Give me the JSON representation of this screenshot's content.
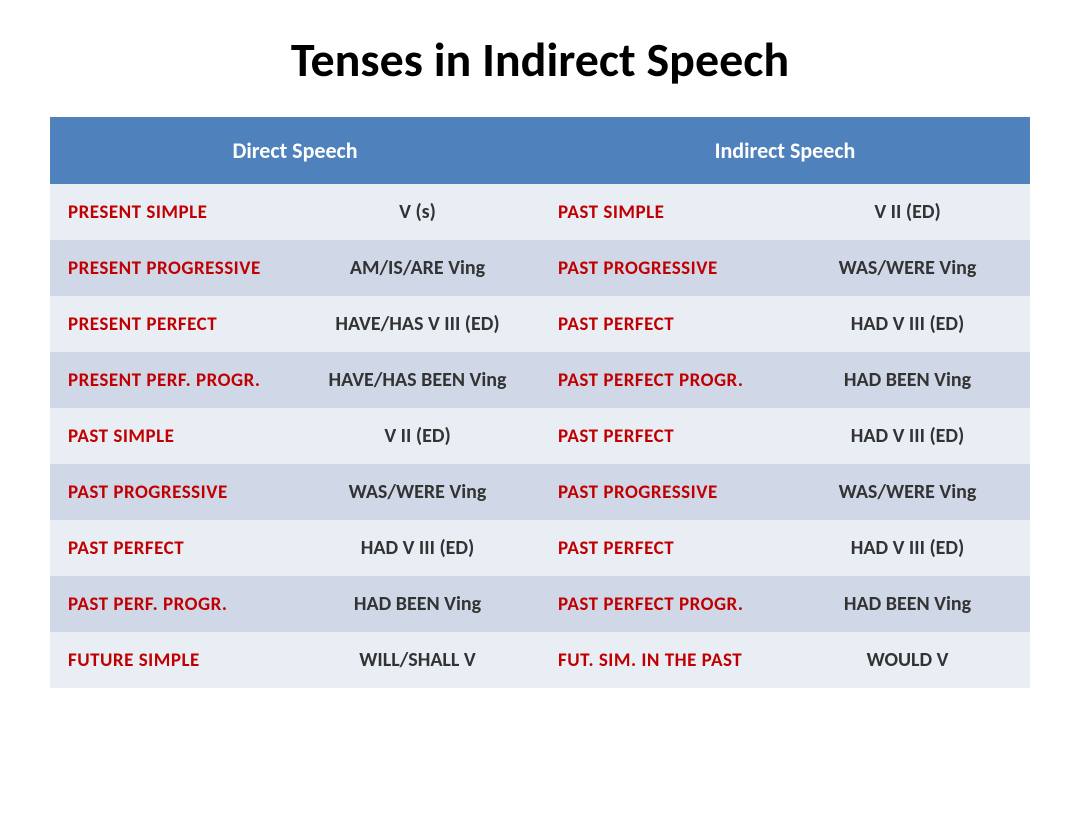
{
  "title": "Tenses in Indirect Speech",
  "title_fontsize": 48,
  "header": {
    "direct": "Direct  Speech",
    "indirect": "Indirect Speech",
    "bg": "#4f81bd",
    "color": "#ffffff",
    "fontsize": 22
  },
  "colors": {
    "tense_text": "#c00000",
    "form_text": "#333333",
    "row_odd": "#e9edf4",
    "row_even": "#d0d8e8"
  },
  "fontsize": {
    "tense": 19,
    "form": 20
  },
  "rows": [
    {
      "d_tense": "Present Simple",
      "d_form": "V (s)",
      "i_tense": "Past Simple",
      "i_form": "V II (ED)"
    },
    {
      "d_tense": "Present Progressive",
      "d_form": "AM/IS/ARE  Ving",
      "i_tense": "Past Progressive",
      "i_form": "WAS/WERE Ving"
    },
    {
      "d_tense": "Present Perfect",
      "d_form": "HAVE/HAS  V III (ED)",
      "i_tense": "Past Perfect",
      "i_form": "HAD  V III (ED)"
    },
    {
      "d_tense": "Present Perf. Progr.",
      "d_form": "HAVE/HAS BEEN Ving",
      "i_tense": "Past Perfect Progr.",
      "i_form": "HAD BEEN  Ving"
    },
    {
      "d_tense": "Past Simple",
      "d_form": "V II (ED)",
      "i_tense": "Past Perfect",
      "i_form": "HAD  V III (ED)"
    },
    {
      "d_tense": "Past Progressive",
      "d_form": "WAS/WERE Ving",
      "i_tense": "Past Progressive",
      "i_form": "WAS/WERE  Ving"
    },
    {
      "d_tense": "Past Perfect",
      "d_form": "HAD  V III (ED)",
      "i_tense": "Past Perfect",
      "i_form": "HAD  V III (ED)"
    },
    {
      "d_tense": "Past Perf. Progr.",
      "d_form": "HAD BEEN  Ving",
      "i_tense": "Past Perfect Progr.",
      "i_form": "HAD BEEN  Ving"
    },
    {
      "d_tense": "Future Simple",
      "d_form": "WILL/SHALL  V",
      "i_tense": "Fut. Sim. in the Past",
      "i_form": "WOULD  V"
    }
  ]
}
